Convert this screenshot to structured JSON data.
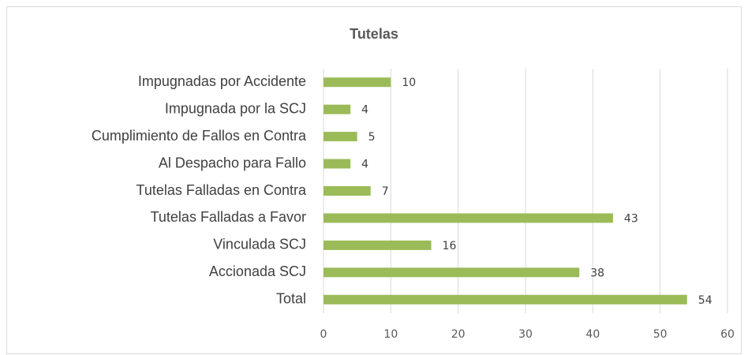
{
  "chart_data": {
    "type": "barh",
    "title": "Tutelas",
    "categories": [
      "Impugnadas por Accidente",
      "Impugnada por la SCJ",
      "Cumplimiento de Fallos en Contra",
      "Al Despacho para Fallo",
      "Tutelas Falladas en Contra",
      "Tutelas Falladas a Favor",
      "Vinculada SCJ",
      "Accionada SCJ",
      "Total"
    ],
    "values": [
      10,
      4,
      5,
      4,
      7,
      43,
      16,
      38,
      54
    ],
    "color": "#9bbb59",
    "xlim": [
      0,
      60
    ],
    "xticks": [
      0,
      10,
      20,
      30,
      40,
      50,
      60
    ],
    "grid": true
  }
}
